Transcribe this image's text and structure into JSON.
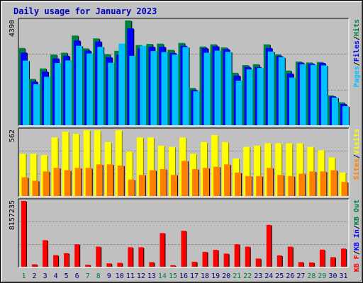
{
  "title": "Daily usage for January 2023",
  "colors": {
    "background": "#c0c0c0",
    "title": "#0000c0",
    "hits": "#008040",
    "files": "#0000ff",
    "pages": "#00c0ff",
    "visits": "#ffff00",
    "sites": "#ff8000",
    "kbytes": "#ff0000",
    "weekend_label": "#008040",
    "weekday_label": "#000080"
  },
  "chart_data": {
    "type": "bar",
    "days": [
      "1",
      "2",
      "3",
      "4",
      "5",
      "6",
      "7",
      "8",
      "9",
      "10",
      "11",
      "12",
      "13",
      "14",
      "15",
      "16",
      "17",
      "18",
      "19",
      "20",
      "21",
      "22",
      "23",
      "24",
      "25",
      "26",
      "27",
      "28",
      "29",
      "30",
      "31"
    ],
    "weekend_days": [
      "1",
      "7",
      "8",
      "14",
      "15",
      "21",
      "22",
      "28",
      "29"
    ],
    "panels": [
      {
        "id": "hits-files-pages",
        "scale_max_label": "4390",
        "scale_max": 4390,
        "legend": [
          {
            "label": "Hits",
            "color": "#008040"
          },
          {
            "label": "Files",
            "color": "#0000ff"
          },
          {
            "label": "Pages",
            "color": "#00c0ff"
          }
        ],
        "series": [
          {
            "name": "Hits",
            "values": [
              3240,
              1940,
              2380,
              2960,
              3040,
              3760,
              3220,
              3640,
              2980,
              3120,
              4390,
              3360,
              3410,
              3420,
              3160,
              3450,
              1560,
              3300,
              3390,
              3260,
              2200,
              2520,
              2560,
              3390,
              2970,
              2290,
              2670,
              2630,
              2650,
              1250,
              960
            ]
          },
          {
            "name": "Files",
            "values": [
              3050,
              1830,
              2250,
              2800,
              2910,
              3550,
              3130,
              3510,
              2850,
              2960,
              4060,
              3220,
              3290,
              3290,
              3030,
              3330,
              1470,
              3230,
              3310,
              3190,
              2080,
              2440,
              2440,
              3240,
              2900,
              2170,
              2620,
              2580,
              2610,
              1210,
              890
            ]
          },
          {
            "name": "Pages",
            "values": [
              2710,
              1720,
              2030,
              2610,
              2720,
              3330,
              3010,
              3290,
              2620,
              3420,
              2910,
              3330,
              3110,
              3070,
              2960,
              3280,
              1420,
              3040,
              3130,
              3080,
              1870,
              2340,
              2400,
              3090,
              2850,
              2000,
              2560,
              2530,
              2510,
              1160,
              800
            ]
          }
        ]
      },
      {
        "id": "visits-sites",
        "scale_max_label": "562",
        "scale_max": 562,
        "legend": [
          {
            "label": "Visits",
            "color": "#ffff00"
          },
          {
            "label": "Sites",
            "color": "#ff8000"
          }
        ],
        "series": [
          {
            "name": "Visits",
            "values": [
              360,
              360,
              350,
              500,
              550,
              530,
              560,
              560,
              460,
              560,
              380,
              500,
              500,
              430,
              420,
              500,
              360,
              460,
              520,
              460,
              320,
              420,
              430,
              450,
              450,
              450,
              450,
              420,
              390,
              330,
              200
            ]
          },
          {
            "name": "Sites",
            "values": [
              160,
              130,
              210,
              240,
              220,
              240,
              240,
              270,
              270,
              260,
              140,
              180,
              220,
              230,
              180,
              300,
              230,
              240,
              250,
              270,
              200,
              170,
              170,
              240,
              180,
              170,
              190,
              210,
              210,
              220,
              120
            ]
          }
        ]
      },
      {
        "id": "kbytes",
        "scale_max_label": "8157235",
        "scale_max": 8157235,
        "legend": [
          {
            "label": "KB Out",
            "color": "#008040"
          },
          {
            "label": "KB In",
            "color": "#0000ff"
          },
          {
            "label": "KB F",
            "color": "#ff0000"
          }
        ],
        "series": [
          {
            "name": "KB F",
            "values": [
              8157235,
              300000,
              3290000,
              1440000,
              1680000,
              2790000,
              250000,
              2490000,
              420000,
              490000,
              2420000,
              2420000,
              570000,
              4170000,
              190000,
              4460000,
              620000,
              1840000,
              2090000,
              1630000,
              2790000,
              2490000,
              1020000,
              5190000,
              1400000,
              2490000,
              580000,
              530000,
              2120000,
              1190000,
              2250000
            ]
          }
        ]
      }
    ]
  }
}
